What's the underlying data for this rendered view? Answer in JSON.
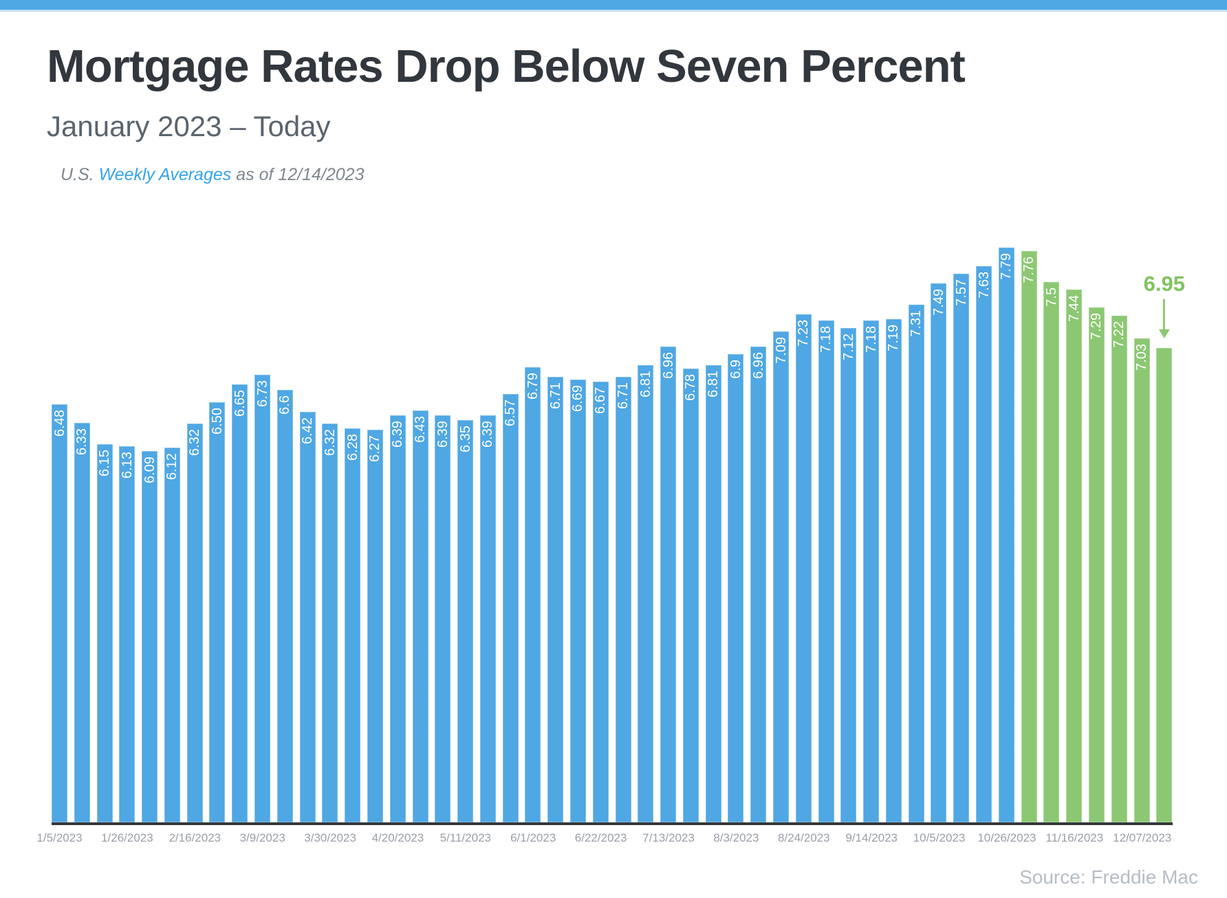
{
  "page": {
    "title": "Mortgage Rates Drop Below Seven Percent",
    "subtitle": "January 2023 – Today",
    "note": {
      "prefix": "U.S. ",
      "link": "Weekly Averages",
      "suffix": " as of 12/14/2023"
    },
    "source": "Source: Freddie Mac"
  },
  "colors": {
    "bar_blue": "#4FA7E3",
    "bar_green": "#8CC873",
    "annotation_green": "#7FC35F",
    "top_strip_blue": "#4FA7E3",
    "title_color": "#31373d",
    "axis_line": "#34383c"
  },
  "chart_data": {
    "type": "bar",
    "title": "Mortgage Rates Drop Below Seven Percent",
    "subtitle": "January 2023 – Today",
    "xlabel": "",
    "ylabel": "",
    "ylim": [
      3,
      7.81
    ],
    "grid": false,
    "legend": false,
    "values": [
      "6.48",
      "6.33",
      "6.15",
      "6.13",
      "6.09",
      "6.12",
      "6.32",
      "6.50",
      "6.65",
      "6.73",
      "6.6",
      "6.42",
      "6.32",
      "6.28",
      "6.27",
      "6.39",
      "6.43",
      "6.39",
      "6.35",
      "6.39",
      "6.57",
      "6.79",
      "6.71",
      "6.69",
      "6.67",
      "6.71",
      "6.81",
      "6.96",
      "6.78",
      "6.81",
      "6.9",
      "6.96",
      "7.09",
      "7.23",
      "7.18",
      "7.12",
      "7.18",
      "7.19",
      "7.31",
      "7.49",
      "7.57",
      "7.63",
      "7.79",
      "7.76",
      "7.5",
      "7.44",
      "7.29",
      "7.22",
      "7.03",
      "6.95"
    ],
    "green_from_index": 43,
    "x_tick_every": 3,
    "x_tick_labels": [
      "1/5/2023",
      "1/26/2023",
      "2/16/2023",
      "3/9/2023",
      "3/30/2023",
      "4/20/2023",
      "5/11/2023",
      "6/1/2023",
      "6/22/2023",
      "7/13/2023",
      "8/3/2023",
      "8/24/2023",
      "9/14/2023",
      "10/5/2023",
      "10/26/2023",
      "11/16/2023",
      "12/07/2023"
    ],
    "annotation": {
      "label": "6.95",
      "bar_index": 49
    }
  }
}
